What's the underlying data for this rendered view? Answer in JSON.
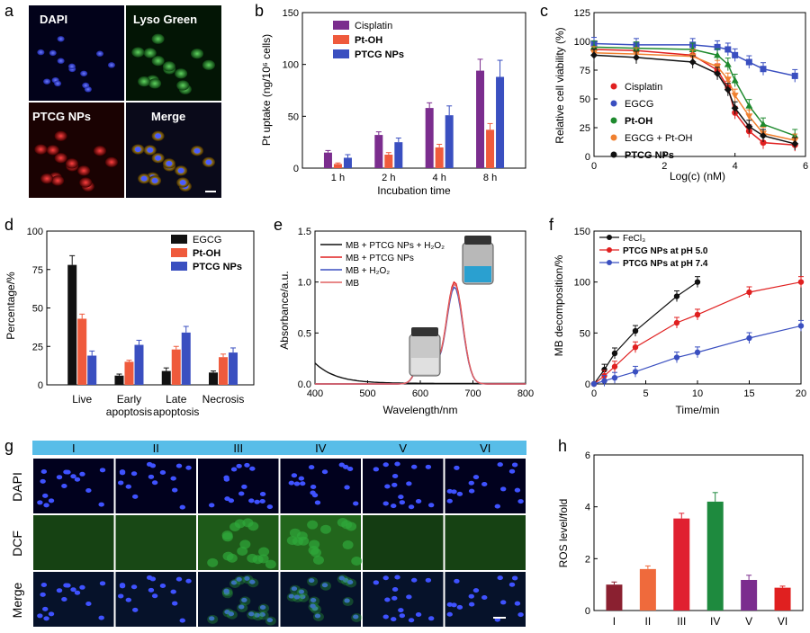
{
  "panels": {
    "a": {
      "letter": "a",
      "labels": [
        "DAPI",
        "Lyso Green",
        "PTCG NPs",
        "Merge"
      ]
    },
    "b": {
      "letter": "b"
    },
    "c": {
      "letter": "c"
    },
    "d": {
      "letter": "d"
    },
    "e": {
      "letter": "e",
      "inset_labels": [
        "MB + PTCG NPs + H₂O₂",
        "MB + PTCG NPs",
        "MB + H₂O₂",
        "MB"
      ]
    },
    "f": {
      "letter": "f"
    },
    "g": {
      "letter": "g",
      "columns": [
        "I",
        "II",
        "III",
        "IV",
        "V",
        "VI"
      ],
      "rows": [
        "DAPI",
        "DCF",
        "Merge"
      ]
    },
    "h": {
      "letter": "h"
    }
  },
  "colors": {
    "purple": "#7b2d8e",
    "orange": "#ef5a3c",
    "blue": "#3a4fc0",
    "black": "#111111",
    "red": "#e02020",
    "green": "#1e8a2e",
    "lightorange": "#f08030",
    "cyan": "#58bde8"
  },
  "chart_data": [
    {
      "id": "b",
      "type": "bar",
      "categories": [
        "1 h",
        "2 h",
        "4 h",
        "8 h"
      ],
      "series": [
        {
          "name": "Cisplatin",
          "values": [
            15,
            32,
            58,
            94
          ],
          "err": [
            2,
            3,
            5,
            11
          ]
        },
        {
          "name": "Pt-OH",
          "values": [
            4,
            13,
            20,
            37
          ],
          "err": [
            1,
            2,
            3,
            6
          ]
        },
        {
          "name": "PTCG NPs",
          "values": [
            10,
            25,
            51,
            88
          ],
          "err": [
            3,
            4,
            9,
            16
          ]
        }
      ],
      "xlabel": "Incubation time",
      "ylabel": "Pt uptake (ng/10⁶ cells)",
      "ylim": [
        0,
        150
      ],
      "yticks": [
        0,
        50,
        100,
        150
      ]
    },
    {
      "id": "c",
      "type": "scatter",
      "xlabel": "Log(c) (nM)",
      "ylabel": "Relative cell viability (%)",
      "xlim": [
        0,
        6
      ],
      "ylim": [
        0,
        125
      ],
      "xticks": [
        0,
        2,
        4,
        6
      ],
      "yticks": [
        0,
        25,
        50,
        75,
        100,
        125
      ],
      "series": [
        {
          "name": "Cisplatin",
          "x": [
            0,
            1.2,
            2.8,
            3.5,
            3.8,
            4.0,
            4.4,
            4.8,
            5.7
          ],
          "y": [
            93,
            92,
            88,
            75,
            60,
            38,
            22,
            12,
            10
          ]
        },
        {
          "name": "EGCG",
          "x": [
            0,
            1.2,
            2.8,
            3.5,
            3.8,
            4.0,
            4.4,
            4.8,
            5.7
          ],
          "y": [
            98,
            97,
            97,
            95,
            93,
            88,
            82,
            76,
            70
          ]
        },
        {
          "name": "Pt-OH",
          "x": [
            0,
            1.2,
            2.8,
            3.5,
            3.8,
            4.0,
            4.4,
            4.8,
            5.7
          ],
          "y": [
            95,
            94,
            93,
            88,
            80,
            66,
            44,
            28,
            18
          ]
        },
        {
          "name": "EGCG + Pt-OH",
          "x": [
            0,
            1.2,
            2.8,
            3.5,
            3.8,
            4.0,
            4.4,
            4.8,
            5.7
          ],
          "y": [
            90,
            89,
            87,
            78,
            67,
            53,
            35,
            20,
            14
          ]
        },
        {
          "name": "PTCG NPs",
          "x": [
            0,
            1.2,
            2.8,
            3.5,
            3.8,
            4.0,
            4.4,
            4.8,
            5.7
          ],
          "y": [
            88,
            86,
            82,
            72,
            58,
            42,
            26,
            18,
            11
          ]
        }
      ]
    },
    {
      "id": "d",
      "type": "bar",
      "categories": [
        "Live",
        "Early apoptosis",
        "Late apoptosis",
        "Necrosis"
      ],
      "series": [
        {
          "name": "EGCG",
          "values": [
            78,
            6,
            9,
            8
          ],
          "err": [
            6,
            1,
            2,
            1
          ]
        },
        {
          "name": "Pt-OH",
          "values": [
            43,
            15,
            23,
            18
          ],
          "err": [
            3,
            1,
            2,
            2
          ]
        },
        {
          "name": "PTCG NPs",
          "values": [
            19,
            26,
            34,
            21
          ],
          "err": [
            3,
            3,
            4,
            3
          ]
        }
      ],
      "ylabel": "Percentage/%",
      "ylim": [
        0,
        100
      ],
      "yticks": [
        0,
        25,
        50,
        75,
        100
      ]
    },
    {
      "id": "e",
      "type": "line",
      "xlabel": "Wavelength/nm",
      "ylabel": "Absorbance/a.u.",
      "xlim": [
        400,
        800
      ],
      "ylim": [
        0,
        1.5
      ],
      "xticks": [
        400,
        500,
        600,
        700,
        800
      ],
      "yticks": [
        0.0,
        0.5,
        1.0,
        1.5
      ],
      "series": [
        {
          "name": "MB + PTCG NPs + H₂O₂",
          "peak": 0.0
        },
        {
          "name": "MB + PTCG NPs",
          "peak": 1.0
        },
        {
          "name": "MB + H₂O₂",
          "peak": 0.95
        },
        {
          "name": "MB",
          "peak": 0.98
        }
      ]
    },
    {
      "id": "f",
      "type": "line",
      "xlabel": "Time/min",
      "ylabel": "MB decomposition/%",
      "xlim": [
        0,
        20
      ],
      "ylim": [
        0,
        150
      ],
      "xticks": [
        0,
        5,
        10,
        15,
        20
      ],
      "yticks": [
        0,
        50,
        100,
        150
      ],
      "series": [
        {
          "name": "FeCl₃",
          "x": [
            0,
            1,
            2,
            4,
            8,
            10
          ],
          "y": [
            0,
            14,
            30,
            52,
            86,
            100
          ]
        },
        {
          "name": "PTCG NPs at pH 5.0",
          "x": [
            0,
            1,
            2,
            4,
            8,
            10,
            15,
            20
          ],
          "y": [
            0,
            8,
            17,
            36,
            60,
            68,
            90,
            100
          ]
        },
        {
          "name": "PTCG NPs at pH 7.4",
          "x": [
            0,
            1,
            2,
            4,
            8,
            10,
            15,
            20
          ],
          "y": [
            0,
            3,
            6,
            12,
            26,
            31,
            45,
            57
          ]
        }
      ]
    },
    {
      "id": "h",
      "type": "bar",
      "categories": [
        "I",
        "II",
        "III",
        "IV",
        "V",
        "VI"
      ],
      "values": [
        1.0,
        1.6,
        3.55,
        4.2,
        1.18,
        0.88
      ],
      "err": [
        0.1,
        0.12,
        0.2,
        0.35,
        0.18,
        0.06
      ],
      "ylabel": "ROS level/fold",
      "ylim": [
        0,
        6
      ],
      "yticks": [
        0,
        2,
        4,
        6
      ]
    }
  ]
}
